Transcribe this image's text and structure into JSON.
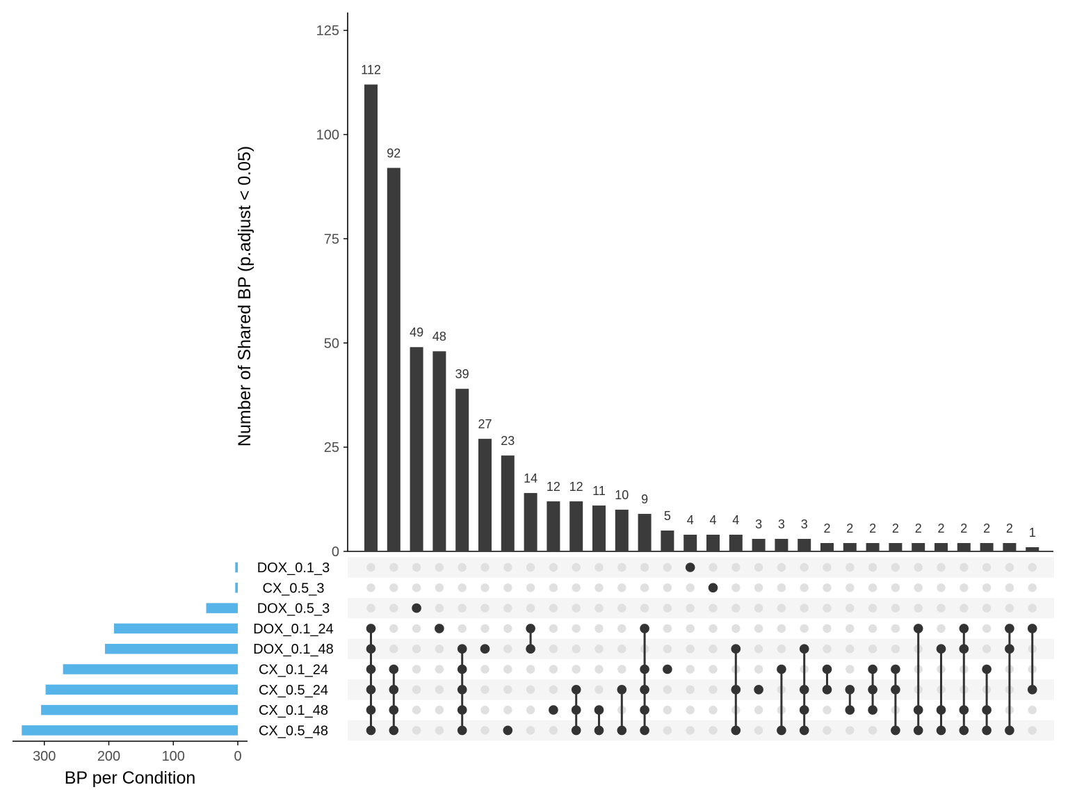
{
  "chart_data": {
    "type": "upset",
    "intersection_axis": {
      "ylabel": "Number of Shared BP (p.adjust < 0.05)",
      "ylim": [
        0,
        128
      ],
      "ticks": [
        0,
        25,
        50,
        75,
        100,
        125
      ]
    },
    "set_size_axis": {
      "xlabel": "BP per Condition",
      "ticks": [
        300,
        200,
        100,
        0
      ],
      "xlim": [
        0,
        350
      ]
    },
    "sets": [
      {
        "name": "DOX_0.1_3",
        "size": 4
      },
      {
        "name": "CX_0.5_3",
        "size": 4
      },
      {
        "name": "DOX_0.5_3",
        "size": 49
      },
      {
        "name": "DOX_0.1_24",
        "size": 192
      },
      {
        "name": "DOX_0.1_48",
        "size": 206
      },
      {
        "name": "CX_0.1_24",
        "size": 271
      },
      {
        "name": "CX_0.5_24",
        "size": 298
      },
      {
        "name": "CX_0.1_48",
        "size": 305
      },
      {
        "name": "CX_0.5_48",
        "size": 335
      }
    ],
    "intersections": [
      {
        "value": 112,
        "sets": [
          "DOX_0.1_24",
          "DOX_0.1_48",
          "CX_0.1_24",
          "CX_0.5_24",
          "CX_0.1_48",
          "CX_0.5_48"
        ]
      },
      {
        "value": 92,
        "sets": [
          "CX_0.1_24",
          "CX_0.5_24",
          "CX_0.1_48",
          "CX_0.5_48"
        ]
      },
      {
        "value": 49,
        "sets": [
          "DOX_0.5_3"
        ]
      },
      {
        "value": 48,
        "sets": [
          "DOX_0.1_24"
        ]
      },
      {
        "value": 39,
        "sets": [
          "DOX_0.1_48",
          "CX_0.1_24",
          "CX_0.5_24",
          "CX_0.1_48",
          "CX_0.5_48"
        ]
      },
      {
        "value": 27,
        "sets": [
          "DOX_0.1_48"
        ]
      },
      {
        "value": 23,
        "sets": [
          "CX_0.5_48"
        ]
      },
      {
        "value": 14,
        "sets": [
          "DOX_0.1_24",
          "DOX_0.1_48"
        ]
      },
      {
        "value": 12,
        "sets": [
          "CX_0.1_48"
        ]
      },
      {
        "value": 12,
        "sets": [
          "CX_0.5_24",
          "CX_0.1_48",
          "CX_0.5_48"
        ]
      },
      {
        "value": 11,
        "sets": [
          "CX_0.1_48",
          "CX_0.5_48"
        ]
      },
      {
        "value": 10,
        "sets": [
          "CX_0.5_24",
          "CX_0.5_48"
        ]
      },
      {
        "value": 9,
        "sets": [
          "DOX_0.1_24",
          "CX_0.1_24",
          "CX_0.5_24",
          "CX_0.1_48",
          "CX_0.5_48"
        ]
      },
      {
        "value": 5,
        "sets": [
          "CX_0.1_24"
        ]
      },
      {
        "value": 4,
        "sets": [
          "DOX_0.1_3"
        ]
      },
      {
        "value": 4,
        "sets": [
          "CX_0.5_3"
        ]
      },
      {
        "value": 4,
        "sets": [
          "DOX_0.1_48",
          "CX_0.5_24",
          "CX_0.5_48"
        ]
      },
      {
        "value": 3,
        "sets": [
          "CX_0.5_24"
        ]
      },
      {
        "value": 3,
        "sets": [
          "CX_0.1_24",
          "CX_0.5_48"
        ]
      },
      {
        "value": 3,
        "sets": [
          "DOX_0.1_48",
          "CX_0.5_24",
          "CX_0.1_48",
          "CX_0.5_48"
        ]
      },
      {
        "value": 2,
        "sets": [
          "CX_0.1_24",
          "CX_0.5_24"
        ]
      },
      {
        "value": 2,
        "sets": [
          "CX_0.5_24",
          "CX_0.1_48"
        ]
      },
      {
        "value": 2,
        "sets": [
          "CX_0.1_24",
          "CX_0.5_24",
          "CX_0.1_48"
        ]
      },
      {
        "value": 2,
        "sets": [
          "CX_0.1_24",
          "CX_0.5_24",
          "CX_0.5_48"
        ]
      },
      {
        "value": 2,
        "sets": [
          "DOX_0.1_24",
          "CX_0.1_48",
          "CX_0.5_48"
        ]
      },
      {
        "value": 2,
        "sets": [
          "DOX_0.1_48",
          "CX_0.1_48",
          "CX_0.5_48"
        ]
      },
      {
        "value": 2,
        "sets": [
          "DOX_0.1_24",
          "DOX_0.1_48",
          "CX_0.1_48",
          "CX_0.5_48"
        ]
      },
      {
        "value": 2,
        "sets": [
          "CX_0.1_24",
          "CX_0.1_48",
          "CX_0.5_48"
        ]
      },
      {
        "value": 2,
        "sets": [
          "DOX_0.1_24",
          "DOX_0.1_48",
          "CX_0.5_48"
        ]
      },
      {
        "value": 1,
        "sets": [
          "DOX_0.1_24",
          "CX_0.5_24"
        ]
      }
    ],
    "colors": {
      "intersection_bar": "#3b3b3b",
      "set_bar": "#56b4e9",
      "dot_active": "#333333",
      "dot_inactive": "#e0e0e0",
      "row_stripe": "#f5f5f5"
    },
    "grid": false,
    "legend": "none"
  }
}
